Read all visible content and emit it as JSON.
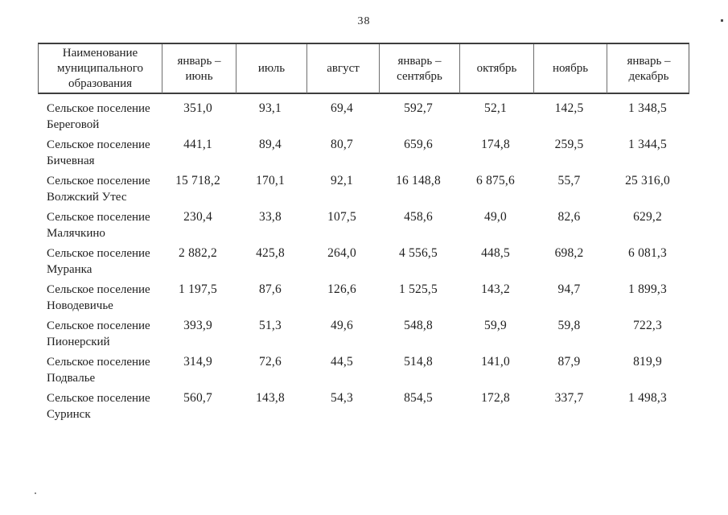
{
  "page": {
    "number": "38"
  },
  "table": {
    "headers": [
      "Наименование\nмуниципального\nобразования",
      "январь –\nиюнь",
      "июль",
      "август",
      "январь –\nсентябрь",
      "октябрь",
      "ноябрь",
      "январь –\nдекабрь"
    ],
    "rows": [
      {
        "name_line1": "Сельское поселение",
        "name_line2": "Береговой",
        "values": [
          "351,0",
          "93,1",
          "69,4",
          "592,7",
          "52,1",
          "142,5",
          "1 348,5"
        ]
      },
      {
        "name_line1": "Сельское поселение",
        "name_line2": "Бичевная",
        "values": [
          "441,1",
          "89,4",
          "80,7",
          "659,6",
          "174,8",
          "259,5",
          "1 344,5"
        ]
      },
      {
        "name_line1": "Сельское поселение",
        "name_line2": "Волжский Утес",
        "values": [
          "15 718,2",
          "170,1",
          "92,1",
          "16 148,8",
          "6 875,6",
          "55,7",
          "25 316,0"
        ]
      },
      {
        "name_line1": "Сельское поселение",
        "name_line2": "Малячкино",
        "values": [
          "230,4",
          "33,8",
          "107,5",
          "458,6",
          "49,0",
          "82,6",
          "629,2"
        ]
      },
      {
        "name_line1": "Сельское поселение",
        "name_line2": "Муранка",
        "values": [
          "2 882,2",
          "425,8",
          "264,0",
          "4 556,5",
          "448,5",
          "698,2",
          "6 081,3"
        ]
      },
      {
        "name_line1": "Сельское поселение",
        "name_line2": "Новодевичье",
        "values": [
          "1 197,5",
          "87,6",
          "126,6",
          "1 525,5",
          "143,2",
          "94,7",
          "1 899,3"
        ]
      },
      {
        "name_line1": "Сельское поселение",
        "name_line2": "Пионерский",
        "values": [
          "393,9",
          "51,3",
          "49,6",
          "548,8",
          "59,9",
          "59,8",
          "722,3"
        ]
      },
      {
        "name_line1": "Сельское поселение",
        "name_line2": "Подвалье",
        "values": [
          "314,9",
          "72,6",
          "44,5",
          "514,8",
          "141,0",
          "87,9",
          "819,9"
        ]
      },
      {
        "name_line1": "Сельское поселение",
        "name_line2": "Суринск",
        "values": [
          "560,7",
          "143,8",
          "54,3",
          "854,5",
          "172,8",
          "337,7",
          "1 498,3"
        ]
      }
    ]
  }
}
